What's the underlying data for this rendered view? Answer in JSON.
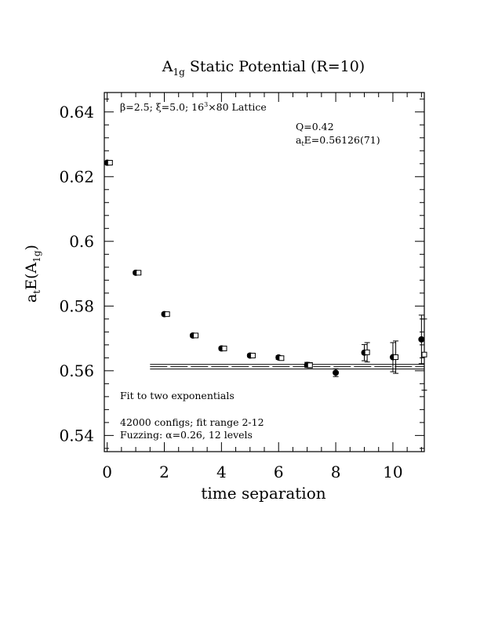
{
  "chart_data": {
    "type": "scatter",
    "title": {
      "main": "A",
      "sub": "1g",
      "rest": " Static Potential (R=10)"
    },
    "ylabel": {
      "a": "a",
      "t": "t",
      "E": "E(A",
      "g": "1g",
      "close": ")"
    },
    "xlabel": "time separation",
    "xlim": [
      -0.1,
      11.1
    ],
    "ylim": [
      0.535,
      0.646
    ],
    "x_ticks": [
      0,
      2,
      4,
      6,
      8,
      10
    ],
    "y_ticks": [
      0.54,
      0.56,
      0.58,
      0.6,
      0.62,
      0.64
    ],
    "x_tick_labels": [
      "0",
      "2",
      "4",
      "6",
      "8",
      "10"
    ],
    "y_tick_labels": [
      "0.54",
      "0.56",
      "0.58",
      "0.6",
      "0.62",
      "0.64"
    ],
    "annotations": {
      "params_prefix": "β=2.5; ξ=5.0; 16",
      "params_sup": "3",
      "params_suffix": "×80 Lattice",
      "q": "Q=0.42",
      "energy_a": "a",
      "energy_t": "t",
      "energy_rest": "E=0.56126(71)",
      "fit_label": "Fit to two exponentials",
      "configs": "42000 configs; fit range 2-12",
      "fuzzing": "Fuzzing: α=0.26, 12 levels"
    },
    "series": [
      {
        "marker": "filled-circle",
        "points": [
          {
            "x": 0,
            "y": 0.6243,
            "err": 0.0005
          },
          {
            "x": 1,
            "y": 0.5903,
            "err": 0.0005
          },
          {
            "x": 2,
            "y": 0.5775,
            "err": 0.0005
          },
          {
            "x": 3,
            "y": 0.5709,
            "err": 0.0005
          },
          {
            "x": 4,
            "y": 0.5669,
            "err": 0.0005
          },
          {
            "x": 5,
            "y": 0.5647,
            "err": 0.0005
          },
          {
            "x": 6,
            "y": 0.5641,
            "err": 0.0006
          },
          {
            "x": 7,
            "y": 0.5618,
            "err": 0.0008
          },
          {
            "x": 8,
            "y": 0.5594,
            "err": 0.0012
          },
          {
            "x": 9,
            "y": 0.5656,
            "err": 0.0025
          },
          {
            "x": 10,
            "y": 0.5642,
            "err": 0.0045
          },
          {
            "x": 11,
            "y": 0.5697,
            "err": 0.0075
          }
        ]
      },
      {
        "marker": "open-square",
        "points": [
          {
            "x": 0.1,
            "y": 0.6243,
            "err": 0.0005
          },
          {
            "x": 1.1,
            "y": 0.5903,
            "err": 0.0005
          },
          {
            "x": 2.1,
            "y": 0.5775,
            "err": 0.0005
          },
          {
            "x": 3.1,
            "y": 0.5709,
            "err": 0.0005
          },
          {
            "x": 4.1,
            "y": 0.5669,
            "err": 0.0005
          },
          {
            "x": 5.1,
            "y": 0.5647,
            "err": 0.0005
          },
          {
            "x": 6.1,
            "y": 0.5639,
            "err": 0.0006
          },
          {
            "x": 7.1,
            "y": 0.5617,
            "err": 0.0008
          },
          {
            "x": 9.1,
            "y": 0.5657,
            "err": 0.003
          },
          {
            "x": 10.1,
            "y": 0.5642,
            "err": 0.005
          },
          {
            "x": 11.1,
            "y": 0.565,
            "err": 0.011
          }
        ]
      }
    ],
    "fit": {
      "value": 0.56126,
      "error": 0.00071,
      "x_range": [
        1.5,
        11.1
      ]
    }
  }
}
